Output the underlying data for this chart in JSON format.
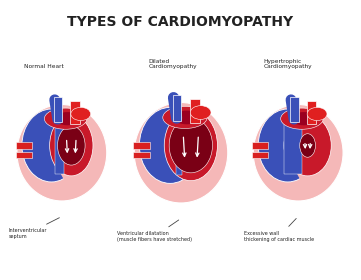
{
  "title": "TYPES OF CARDIOMYOPATHY",
  "title_fontsize": 10,
  "title_fontweight": "bold",
  "bg_color": "#ffffff",
  "hearts": [
    {
      "label": "Normal Heart",
      "annotation": "Interventricular\nseptum",
      "type": "normal"
    },
    {
      "label": "Dilated\nCardiomyopathy",
      "annotation": "Ventricular dilatation\n(muscle fibers have stretched)",
      "type": "dilated"
    },
    {
      "label": "Hypertrophic\nCardiomyopathy",
      "annotation": "Excessive wall\nthickening of cardiac muscle",
      "type": "hypertrophic"
    }
  ],
  "colors": {
    "outer_pink": "#f5b8b8",
    "dark_red_muscle": "#c8192a",
    "rv_blue": "#3a50b8",
    "dark_blue": "#2233a0",
    "lv_dark_red": "#9b0020",
    "aorta_red": "#e02020",
    "vessel_blue": "#3a50b8",
    "vessel_red": "#d92020",
    "dark_chamber": "#7a0015",
    "text_dark": "#222222",
    "white": "#ffffff"
  }
}
